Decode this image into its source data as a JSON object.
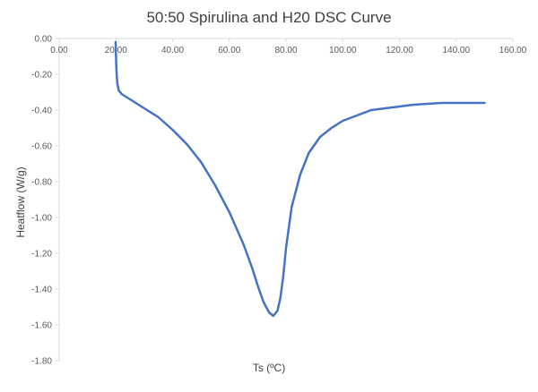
{
  "chart_data": {
    "type": "line",
    "title": "50:50 Spirulina and H20 DSC Curve",
    "xlabel": "Ts (ºC)",
    "ylabel": "Heatflow (W/g)",
    "xlim": [
      0,
      160
    ],
    "ylim": [
      -1.8,
      0
    ],
    "x_ticks": [
      "0.00",
      "20.00",
      "40.00",
      "60.00",
      "80.00",
      "100.00",
      "120.00",
      "140.00",
      "160.00"
    ],
    "y_ticks": [
      "0.00",
      "-0.20",
      "-0.40",
      "-0.60",
      "-0.80",
      "-1.00",
      "-1.20",
      "-1.40",
      "-1.60",
      "-1.80"
    ],
    "x_axis_position": "top",
    "grid": false,
    "legend": "none",
    "series": [
      {
        "color": "#4472C4",
        "points": [
          [
            19.9,
            -0.02
          ],
          [
            20.0,
            -0.08
          ],
          [
            20.2,
            -0.18
          ],
          [
            20.5,
            -0.25
          ],
          [
            21.0,
            -0.29
          ],
          [
            22.0,
            -0.31
          ],
          [
            24.0,
            -0.33
          ],
          [
            27.0,
            -0.36
          ],
          [
            30.0,
            -0.39
          ],
          [
            35.0,
            -0.44
          ],
          [
            40.0,
            -0.51
          ],
          [
            45.0,
            -0.59
          ],
          [
            50.0,
            -0.69
          ],
          [
            55.0,
            -0.82
          ],
          [
            60.0,
            -0.97
          ],
          [
            65.0,
            -1.15
          ],
          [
            68.0,
            -1.28
          ],
          [
            70.0,
            -1.38
          ],
          [
            72.0,
            -1.47
          ],
          [
            74.0,
            -1.53
          ],
          [
            75.5,
            -1.55
          ],
          [
            77.0,
            -1.52
          ],
          [
            78.0,
            -1.45
          ],
          [
            79.0,
            -1.33
          ],
          [
            80.0,
            -1.17
          ],
          [
            82.0,
            -0.94
          ],
          [
            85.0,
            -0.76
          ],
          [
            88.0,
            -0.64
          ],
          [
            92.0,
            -0.55
          ],
          [
            96.0,
            -0.5
          ],
          [
            100.0,
            -0.46
          ],
          [
            105.0,
            -0.43
          ],
          [
            110.0,
            -0.4
          ],
          [
            115.0,
            -0.39
          ],
          [
            120.0,
            -0.38
          ],
          [
            125.0,
            -0.37
          ],
          [
            130.0,
            -0.365
          ],
          [
            135.0,
            -0.36
          ],
          [
            140.0,
            -0.36
          ],
          [
            145.0,
            -0.36
          ],
          [
            150.0,
            -0.36
          ]
        ]
      }
    ]
  }
}
